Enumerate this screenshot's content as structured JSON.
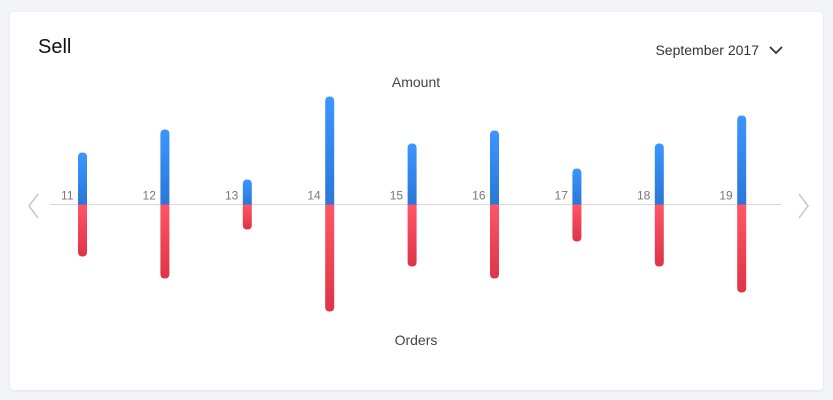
{
  "card": {
    "title": "Sell",
    "month_selector": {
      "value": "September 2017",
      "icon": "chevron-down-icon"
    },
    "nav": {
      "prev_icon": "chevron-left-icon",
      "next_icon": "chevron-right-icon"
    }
  },
  "chart_data": {
    "type": "bar",
    "categories": [
      "11",
      "12",
      "13",
      "14",
      "15",
      "16",
      "17",
      "18",
      "19"
    ],
    "series": [
      {
        "name": "Amount",
        "values": [
          52,
          75,
          25,
          108,
          61,
          74,
          36,
          61,
          89
        ],
        "color": "#3a8ff0"
      },
      {
        "name": "Orders",
        "values": [
          52,
          74,
          25,
          107,
          62,
          74,
          37,
          62,
          88
        ],
        "color": "#f24a5e"
      }
    ],
    "grid": false,
    "colors": {
      "amount_top": "#3b96ff",
      "amount_bottom": "#2a77d8",
      "orders_top": "#ff5566",
      "orders_bottom": "#de3447",
      "baseline": "#d8d8d8",
      "tick_label": "#777777"
    }
  }
}
